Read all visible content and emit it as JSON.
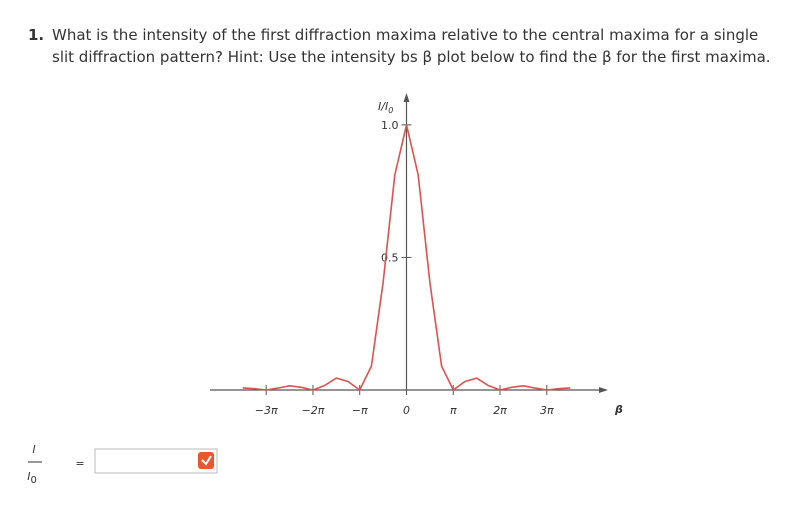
{
  "question": {
    "number": "1.",
    "text": "What is the intensity of the first diffraction maxima relative to the central maxima for a single slit diffraction pattern? Hint: Use the intensity bs β plot below to find the β for the first maxima."
  },
  "chart_data": {
    "type": "line",
    "y_label": "I/I",
    "y_label_sub": "0",
    "x_label": "β",
    "x": [
      -10.996,
      -10.21,
      -9.425,
      -8.639,
      -7.854,
      -7.069,
      -6.283,
      -5.498,
      -4.712,
      -3.927,
      -3.142,
      -2.356,
      -1.571,
      -0.785,
      0,
      0.785,
      1.571,
      2.356,
      3.142,
      3.927,
      4.712,
      5.498,
      6.283,
      7.069,
      7.854,
      8.639,
      9.425,
      10.21,
      10.996
    ],
    "values": [
      0.008,
      0.005,
      0,
      0.007,
      0.016,
      0.01,
      0,
      0.017,
      0.045,
      0.032,
      0,
      0.09,
      0.405,
      0.811,
      1,
      0.811,
      0.405,
      0.09,
      0,
      0.032,
      0.045,
      0.017,
      0,
      0.01,
      0.016,
      0.007,
      0,
      0.005,
      0.008
    ],
    "color": "#d9534f",
    "xlim": [
      -13.2,
      13.0
    ],
    "ylim": [
      0,
      1.09
    ],
    "xticks": [
      {
        "value": -9.425,
        "label": "−3π"
      },
      {
        "value": -6.283,
        "label": "−2π"
      },
      {
        "value": -3.142,
        "label": "−π"
      },
      0,
      {
        "value": 3.142,
        "label": "π"
      },
      {
        "value": 6.283,
        "label": "2π"
      },
      {
        "value": 9.425,
        "label": "3π"
      }
    ],
    "yticks": [
      0.5,
      {
        "value": 1,
        "label": "1.0"
      }
    ]
  },
  "answer": {
    "numerator": "I",
    "denominator": "I",
    "denominator_sub": "0",
    "equals": "="
  }
}
